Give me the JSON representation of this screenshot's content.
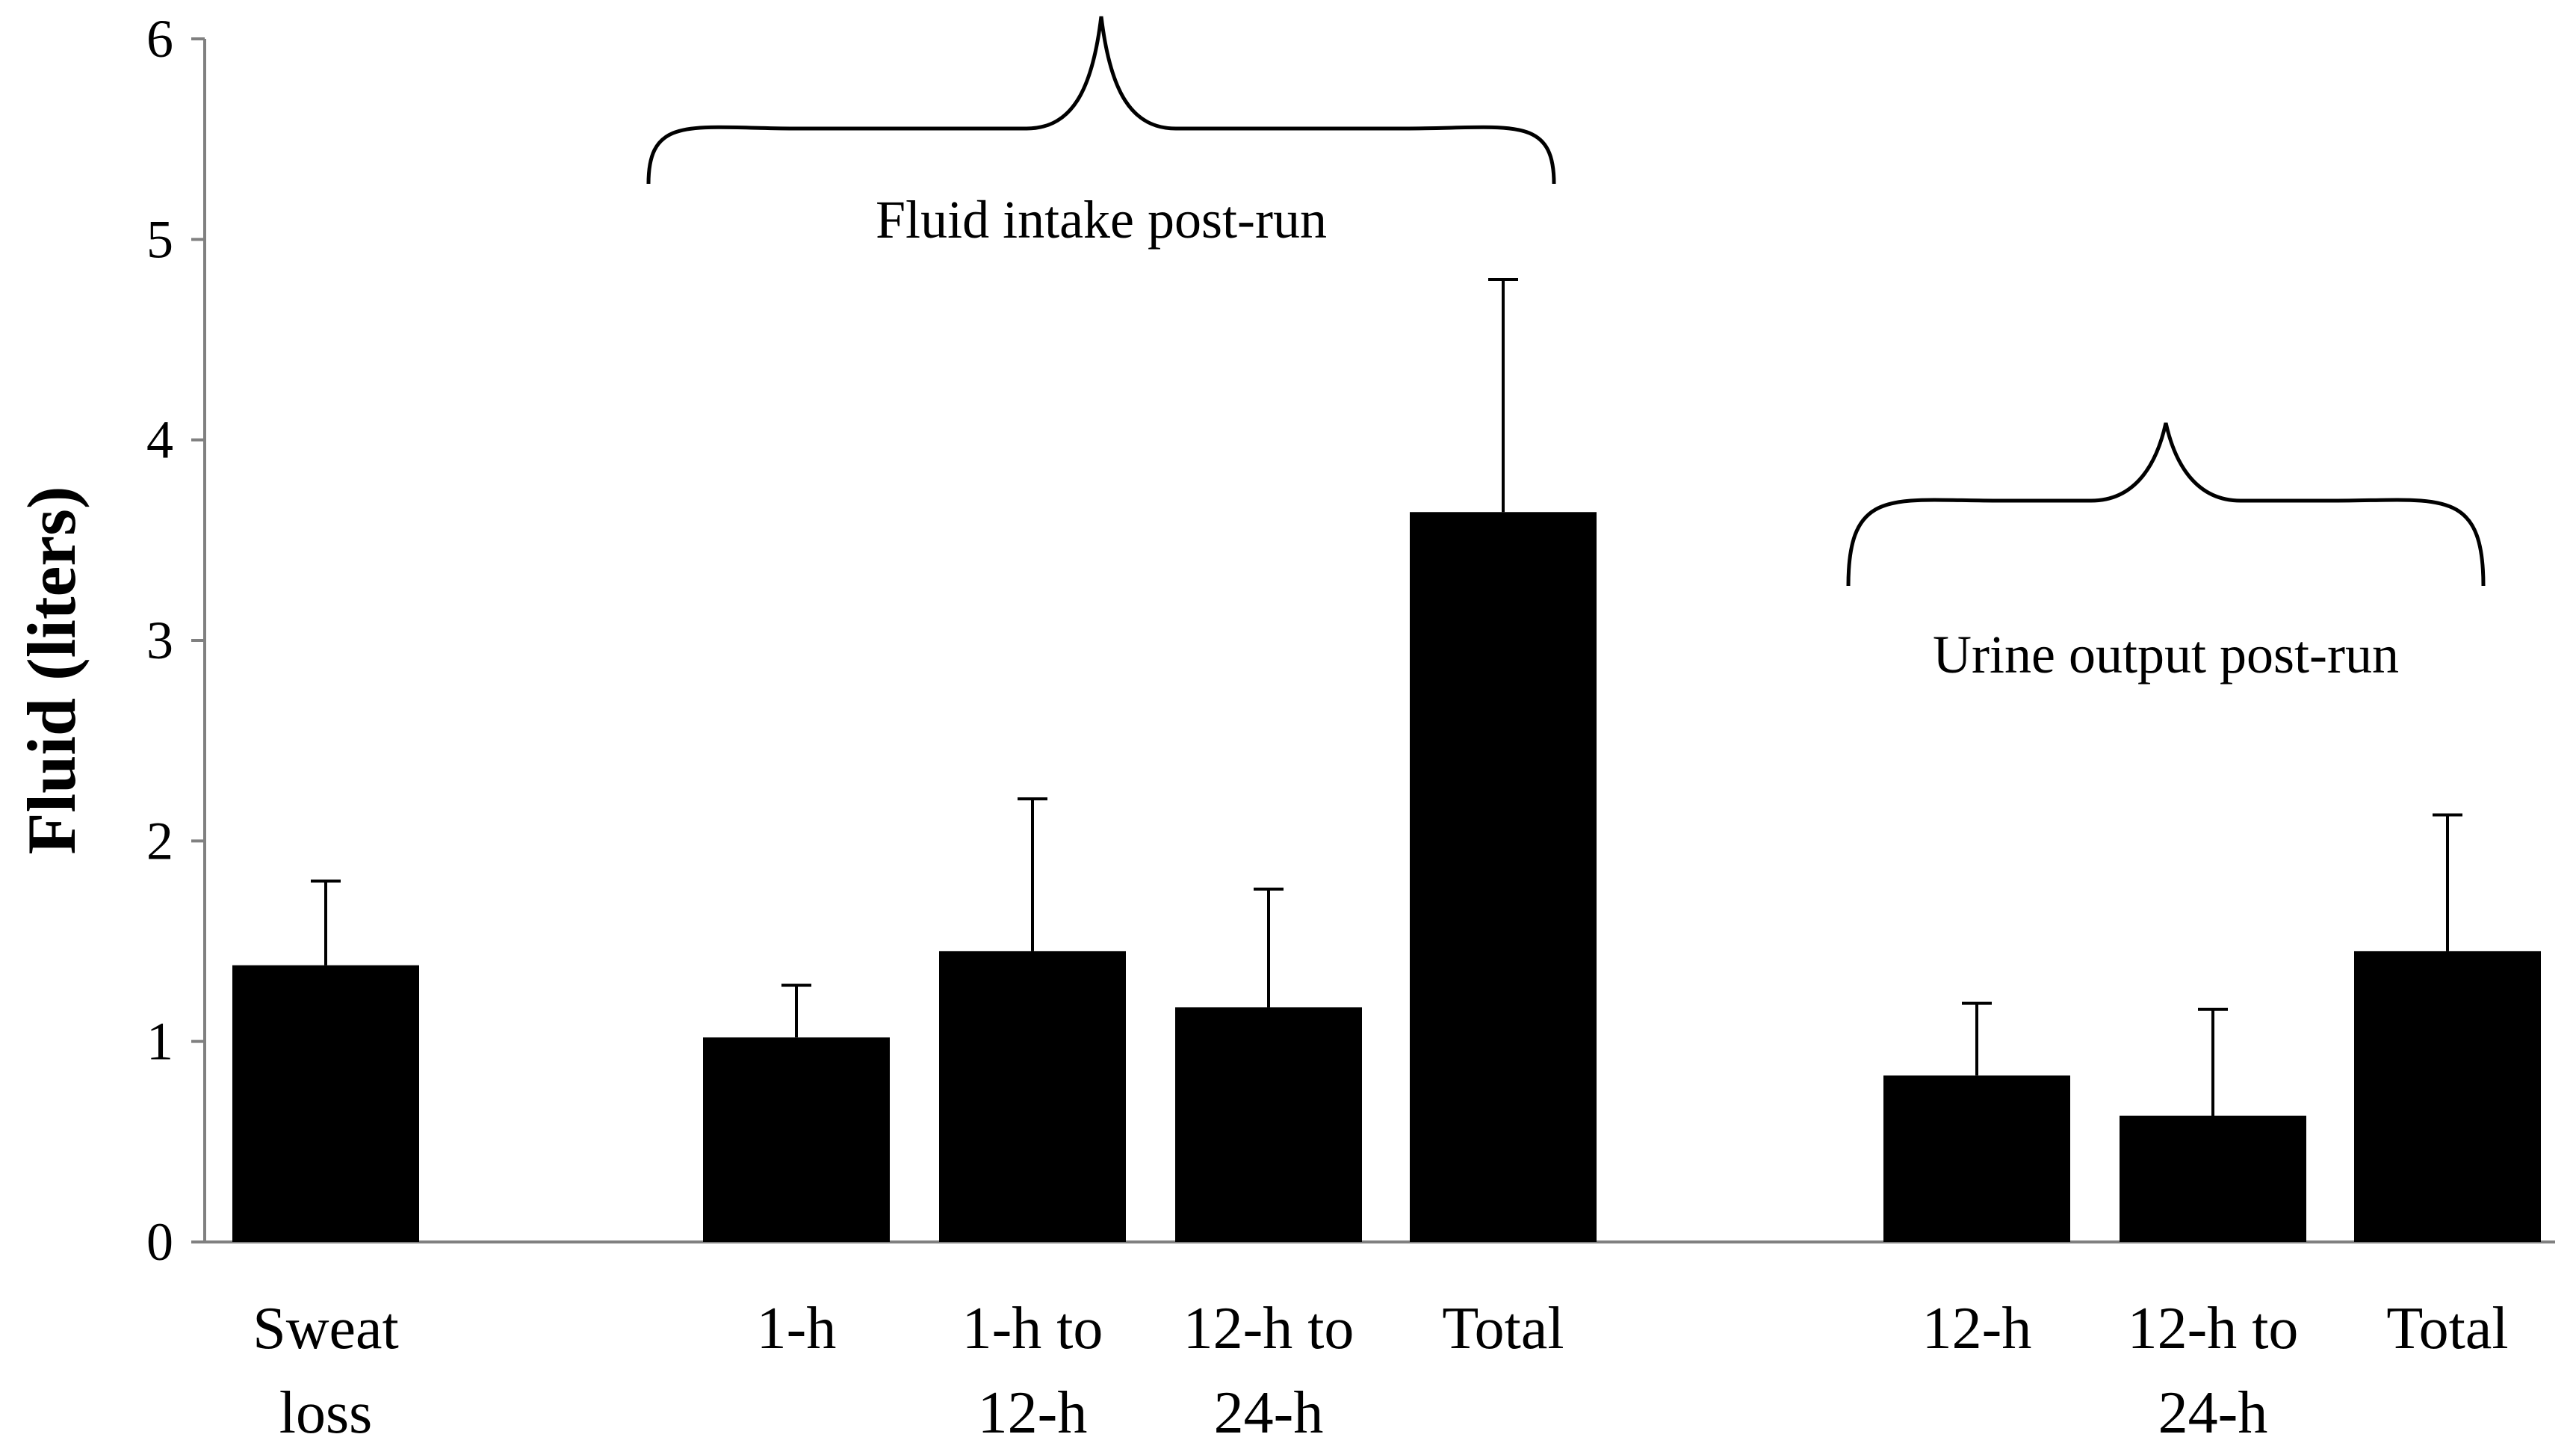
{
  "chart_data": {
    "type": "bar",
    "title": "",
    "xlabel": "",
    "ylabel": "Fluid (liters)",
    "ylim": [
      0,
      6
    ],
    "yticks": [
      0,
      1,
      2,
      3,
      4,
      5,
      6
    ],
    "grid": false,
    "legend": "none",
    "bar_color": "#000000",
    "categories": [
      {
        "lines": [
          "Sweat",
          "loss"
        ],
        "value": 1.38,
        "error": 0.42
      },
      {
        "lines": [
          "1-h"
        ],
        "value": 1.02,
        "error": 0.26
      },
      {
        "lines": [
          "1-h to",
          "12-h"
        ],
        "value": 1.45,
        "error": 0.76
      },
      {
        "lines": [
          "12-h to",
          "24-h"
        ],
        "value": 1.17,
        "error": 0.59
      },
      {
        "lines": [
          "Total"
        ],
        "value": 3.64,
        "error": 1.16
      },
      {
        "lines": [
          "12-h"
        ],
        "value": 0.83,
        "error": 0.36
      },
      {
        "lines": [
          "12-h to",
          "24-h"
        ],
        "value": 0.63,
        "error": 0.53
      },
      {
        "lines": [
          "Total"
        ],
        "value": 1.45,
        "error": 0.68
      }
    ],
    "annotations": [
      {
        "text": "Fluid intake post-run",
        "spans": [
          1,
          4
        ]
      },
      {
        "text": "Urine output post-run",
        "spans": [
          5,
          7
        ]
      }
    ]
  }
}
